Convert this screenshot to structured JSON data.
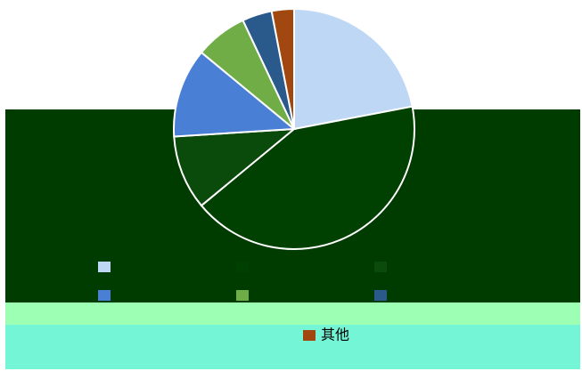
{
  "chart_data": {
    "type": "pie",
    "categories": [
      null,
      null,
      null,
      null,
      null,
      null,
      "其他"
    ],
    "values": [
      22,
      42,
      10,
      12,
      7,
      4,
      3
    ],
    "colors": [
      "#bdd7f5",
      "#004000",
      "#0a4a0a",
      "#4a7fd6",
      "#70ad47",
      "#2a5a8c",
      "#a0480f"
    ]
  }
}
